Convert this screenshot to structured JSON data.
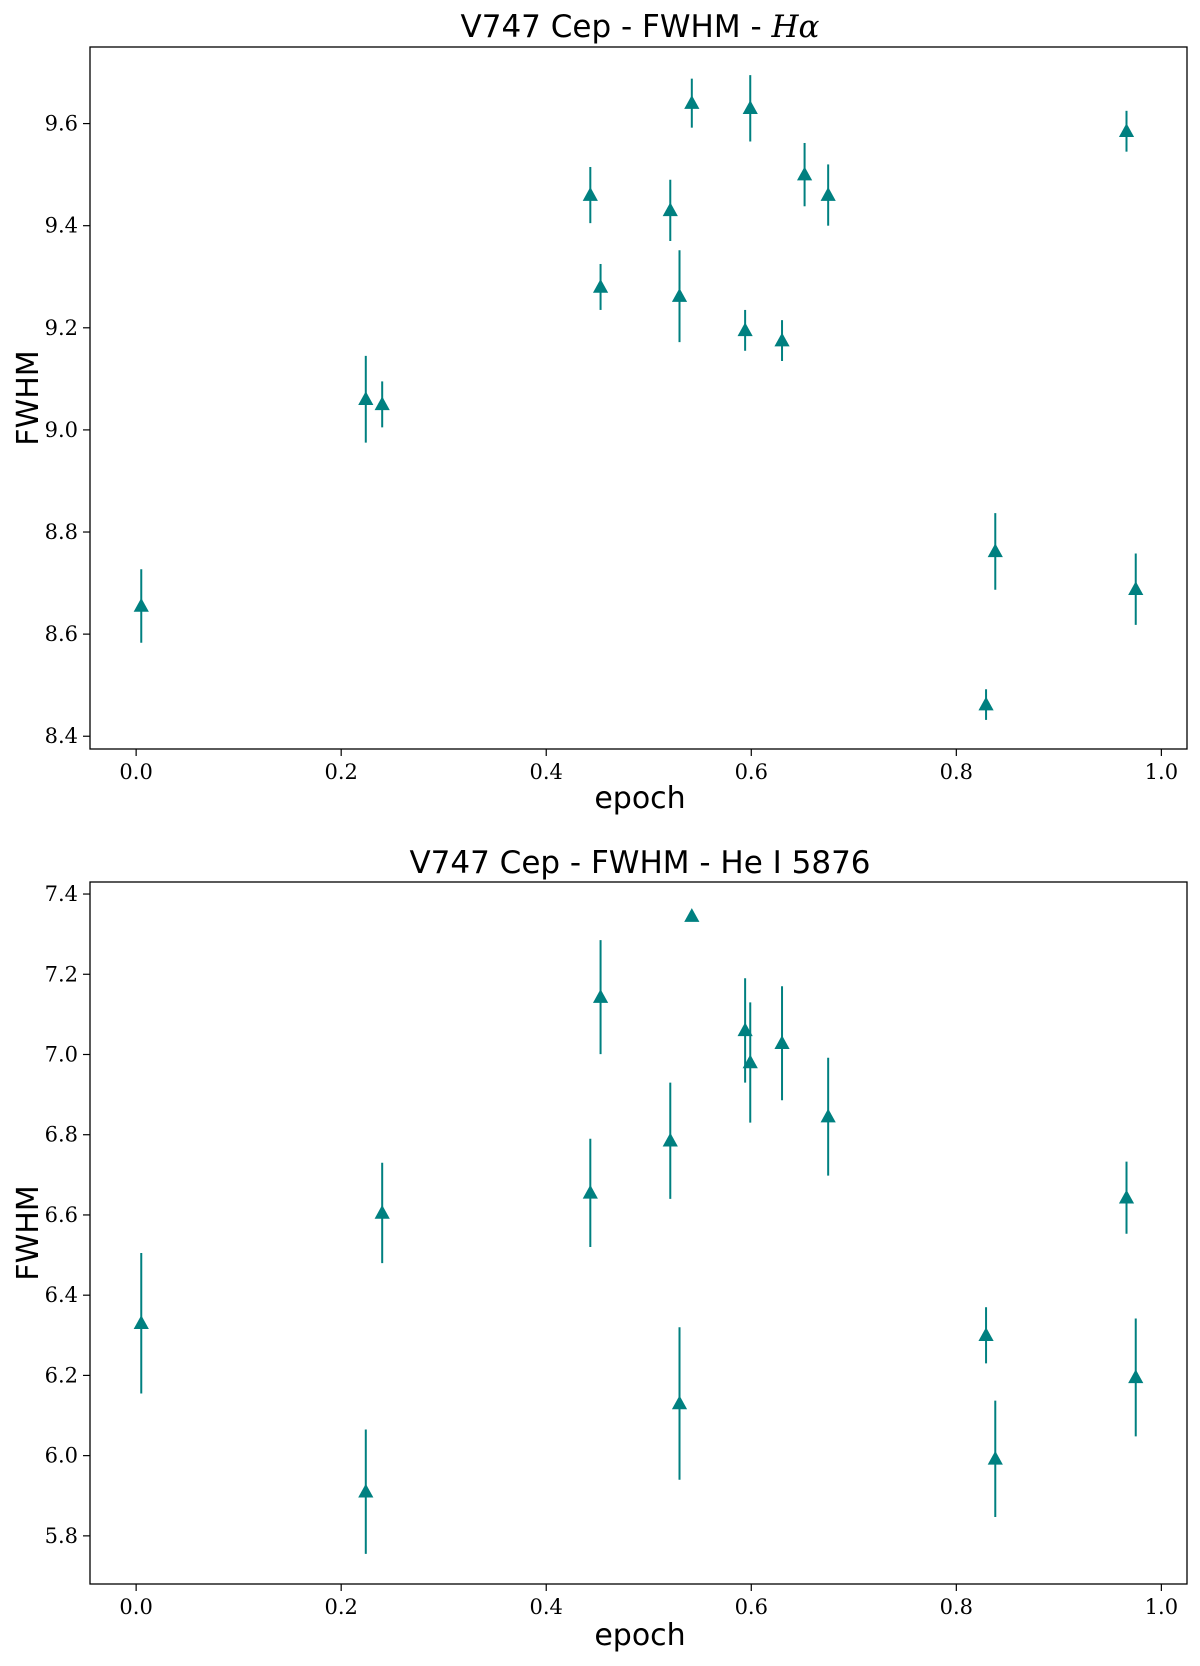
{
  "figure": {
    "style": {
      "marker_color": "#008080",
      "marker_shape": "triangle-up",
      "error_bars": true,
      "grid": false
    }
  },
  "chart_data": [
    {
      "type": "scatter",
      "title": "V747 Cep - FWHM - ",
      "title_math": "Hα",
      "xlabel": "epoch",
      "ylabel": "FWHM",
      "xlim": [
        -0.045,
        1.025
      ],
      "ylim": [
        8.375,
        9.75
      ],
      "xticks": [
        0.0,
        0.2,
        0.4,
        0.6,
        0.8,
        1.0
      ],
      "xtick_labels": [
        "0.0",
        "0.2",
        "0.4",
        "0.6",
        "0.8",
        "1.0"
      ],
      "yticks": [
        8.4,
        8.6,
        8.8,
        9.0,
        9.2,
        9.4,
        9.6
      ],
      "ytick_labels": [
        "8.4",
        "8.6",
        "8.8",
        "9.0",
        "9.2",
        "9.4",
        "9.6"
      ],
      "points": [
        {
          "x": 0.005,
          "y": 8.655,
          "err": 0.072
        },
        {
          "x": 0.224,
          "y": 9.06,
          "err": 0.085
        },
        {
          "x": 0.24,
          "y": 9.05,
          "err": 0.045
        },
        {
          "x": 0.443,
          "y": 9.46,
          "err": 0.055
        },
        {
          "x": 0.453,
          "y": 9.28,
          "err": 0.045
        },
        {
          "x": 0.521,
          "y": 9.43,
          "err": 0.06
        },
        {
          "x": 0.53,
          "y": 9.262,
          "err": 0.09
        },
        {
          "x": 0.542,
          "y": 9.64,
          "err": 0.048
        },
        {
          "x": 0.594,
          "y": 9.195,
          "err": 0.04
        },
        {
          "x": 0.599,
          "y": 9.63,
          "err": 0.065
        },
        {
          "x": 0.63,
          "y": 9.175,
          "err": 0.04
        },
        {
          "x": 0.652,
          "y": 9.5,
          "err": 0.062
        },
        {
          "x": 0.675,
          "y": 9.46,
          "err": 0.06
        },
        {
          "x": 0.829,
          "y": 8.462,
          "err": 0.03
        },
        {
          "x": 0.838,
          "y": 8.762,
          "err": 0.075
        },
        {
          "x": 0.966,
          "y": 9.585,
          "err": 0.04
        },
        {
          "x": 0.975,
          "y": 8.688,
          "err": 0.07
        }
      ]
    },
    {
      "type": "scatter",
      "title": "V747 Cep - FWHM - He I 5876",
      "xlabel": "epoch",
      "ylabel": "FWHM",
      "xlim": [
        -0.045,
        1.025
      ],
      "ylim": [
        5.68,
        7.43
      ],
      "xticks": [
        0.0,
        0.2,
        0.4,
        0.6,
        0.8,
        1.0
      ],
      "xtick_labels": [
        "0.0",
        "0.2",
        "0.4",
        "0.6",
        "0.8",
        "1.0"
      ],
      "yticks": [
        5.8,
        6.0,
        6.2,
        6.4,
        6.6,
        6.8,
        7.0,
        7.2,
        7.4
      ],
      "ytick_labels": [
        "5.8",
        "6.0",
        "6.2",
        "6.4",
        "6.6",
        "6.8",
        "7.0",
        "7.2",
        "7.4"
      ],
      "points": [
        {
          "x": 0.005,
          "y": 6.33,
          "err": 0.175
        },
        {
          "x": 0.224,
          "y": 5.91,
          "err": 0.155
        },
        {
          "x": 0.24,
          "y": 6.605,
          "err": 0.125
        },
        {
          "x": 0.443,
          "y": 6.655,
          "err": 0.135
        },
        {
          "x": 0.453,
          "y": 7.143,
          "err": 0.142
        },
        {
          "x": 0.521,
          "y": 6.785,
          "err": 0.145
        },
        {
          "x": 0.53,
          "y": 6.13,
          "err": 0.19
        },
        {
          "x": 0.542,
          "y": 7.345,
          "err": 0.0
        },
        {
          "x": 0.594,
          "y": 7.06,
          "err": 0.13
        },
        {
          "x": 0.599,
          "y": 6.98,
          "err": 0.15
        },
        {
          "x": 0.63,
          "y": 7.028,
          "err": 0.142
        },
        {
          "x": 0.675,
          "y": 6.845,
          "err": 0.147
        },
        {
          "x": 0.829,
          "y": 6.3,
          "err": 0.07
        },
        {
          "x": 0.838,
          "y": 5.992,
          "err": 0.145
        },
        {
          "x": 0.966,
          "y": 6.643,
          "err": 0.09
        },
        {
          "x": 0.975,
          "y": 6.195,
          "err": 0.147
        }
      ]
    }
  ]
}
